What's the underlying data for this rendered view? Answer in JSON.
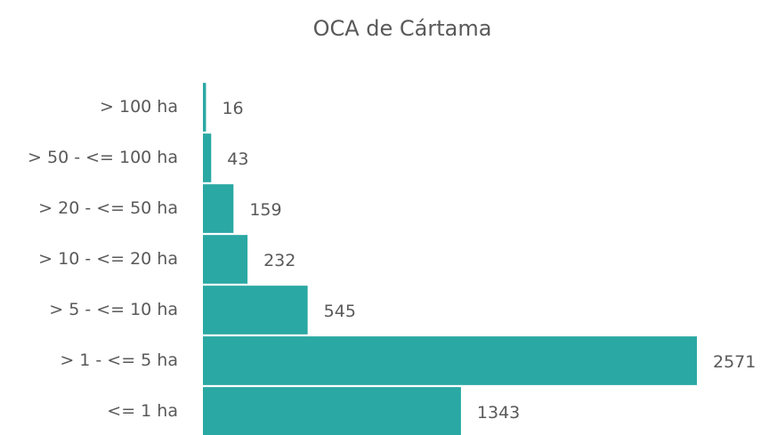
{
  "chart_data": {
    "type": "hbar",
    "title": "OCA de Cártama",
    "categories": [
      "> 100 ha",
      "> 50 - <= 100 ha",
      "> 20 - <= 50 ha",
      "> 10 - <= 20 ha",
      "> 5 - <= 10 ha",
      "> 1 - <= 5 ha",
      "<= 1 ha"
    ],
    "values": [
      16,
      43,
      159,
      232,
      545,
      2571,
      1343
    ],
    "color": "#2aa8a3"
  }
}
